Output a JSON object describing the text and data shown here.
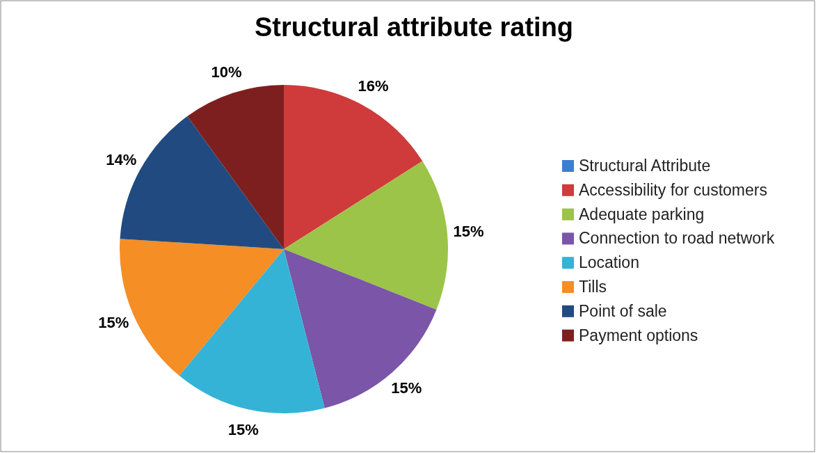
{
  "chart_data": {
    "type": "pie",
    "title": "Structural attribute rating",
    "categories": [
      "Structural Attribute",
      "Accessibility for customers",
      "Adequate parking",
      "Connection to road network",
      "Location",
      "Tills",
      "Point of sale",
      "Payment options"
    ],
    "values": [
      0,
      16,
      15,
      15,
      15,
      15,
      14,
      10
    ],
    "value_labels": [
      null,
      "16%",
      "15%",
      "15%",
      "15%",
      "15%",
      "14%",
      "10%"
    ],
    "colors": [
      "#3c7fd1",
      "#cf3b3b",
      "#9bc449",
      "#7b55a8",
      "#35b3d6",
      "#f58e25",
      "#214b80",
      "#7e1f1f"
    ],
    "legend": "right"
  }
}
